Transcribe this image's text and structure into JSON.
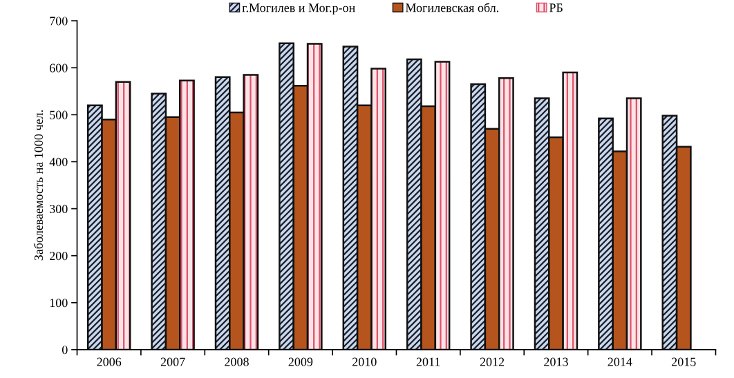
{
  "chart_data": {
    "type": "bar",
    "ylabel": "Заболеваемость на 1000 чел.",
    "categories": [
      "2006",
      "2007",
      "2008",
      "2009",
      "2010",
      "2011",
      "2012",
      "2013",
      "2014",
      "2015"
    ],
    "series": [
      {
        "name": "г.Могилев и Мог.р-он",
        "color": "#c9d9ec",
        "values": [
          520,
          545,
          580,
          652,
          645,
          618,
          565,
          535,
          492,
          498
        ]
      },
      {
        "name": "Могилевская обл.",
        "color": "#b5541c",
        "values": [
          490,
          495,
          505,
          562,
          520,
          518,
          470,
          452,
          422,
          432
        ]
      },
      {
        "name": "РБ",
        "color": "#fbe3e6",
        "values": [
          570,
          573,
          585,
          651,
          598,
          613,
          578,
          590,
          535,
          null
        ]
      }
    ],
    "ylim": [
      0,
      700
    ],
    "yticks": [
      0,
      100,
      200,
      300,
      400,
      500,
      600,
      700
    ],
    "grid": false,
    "legend": "top"
  }
}
